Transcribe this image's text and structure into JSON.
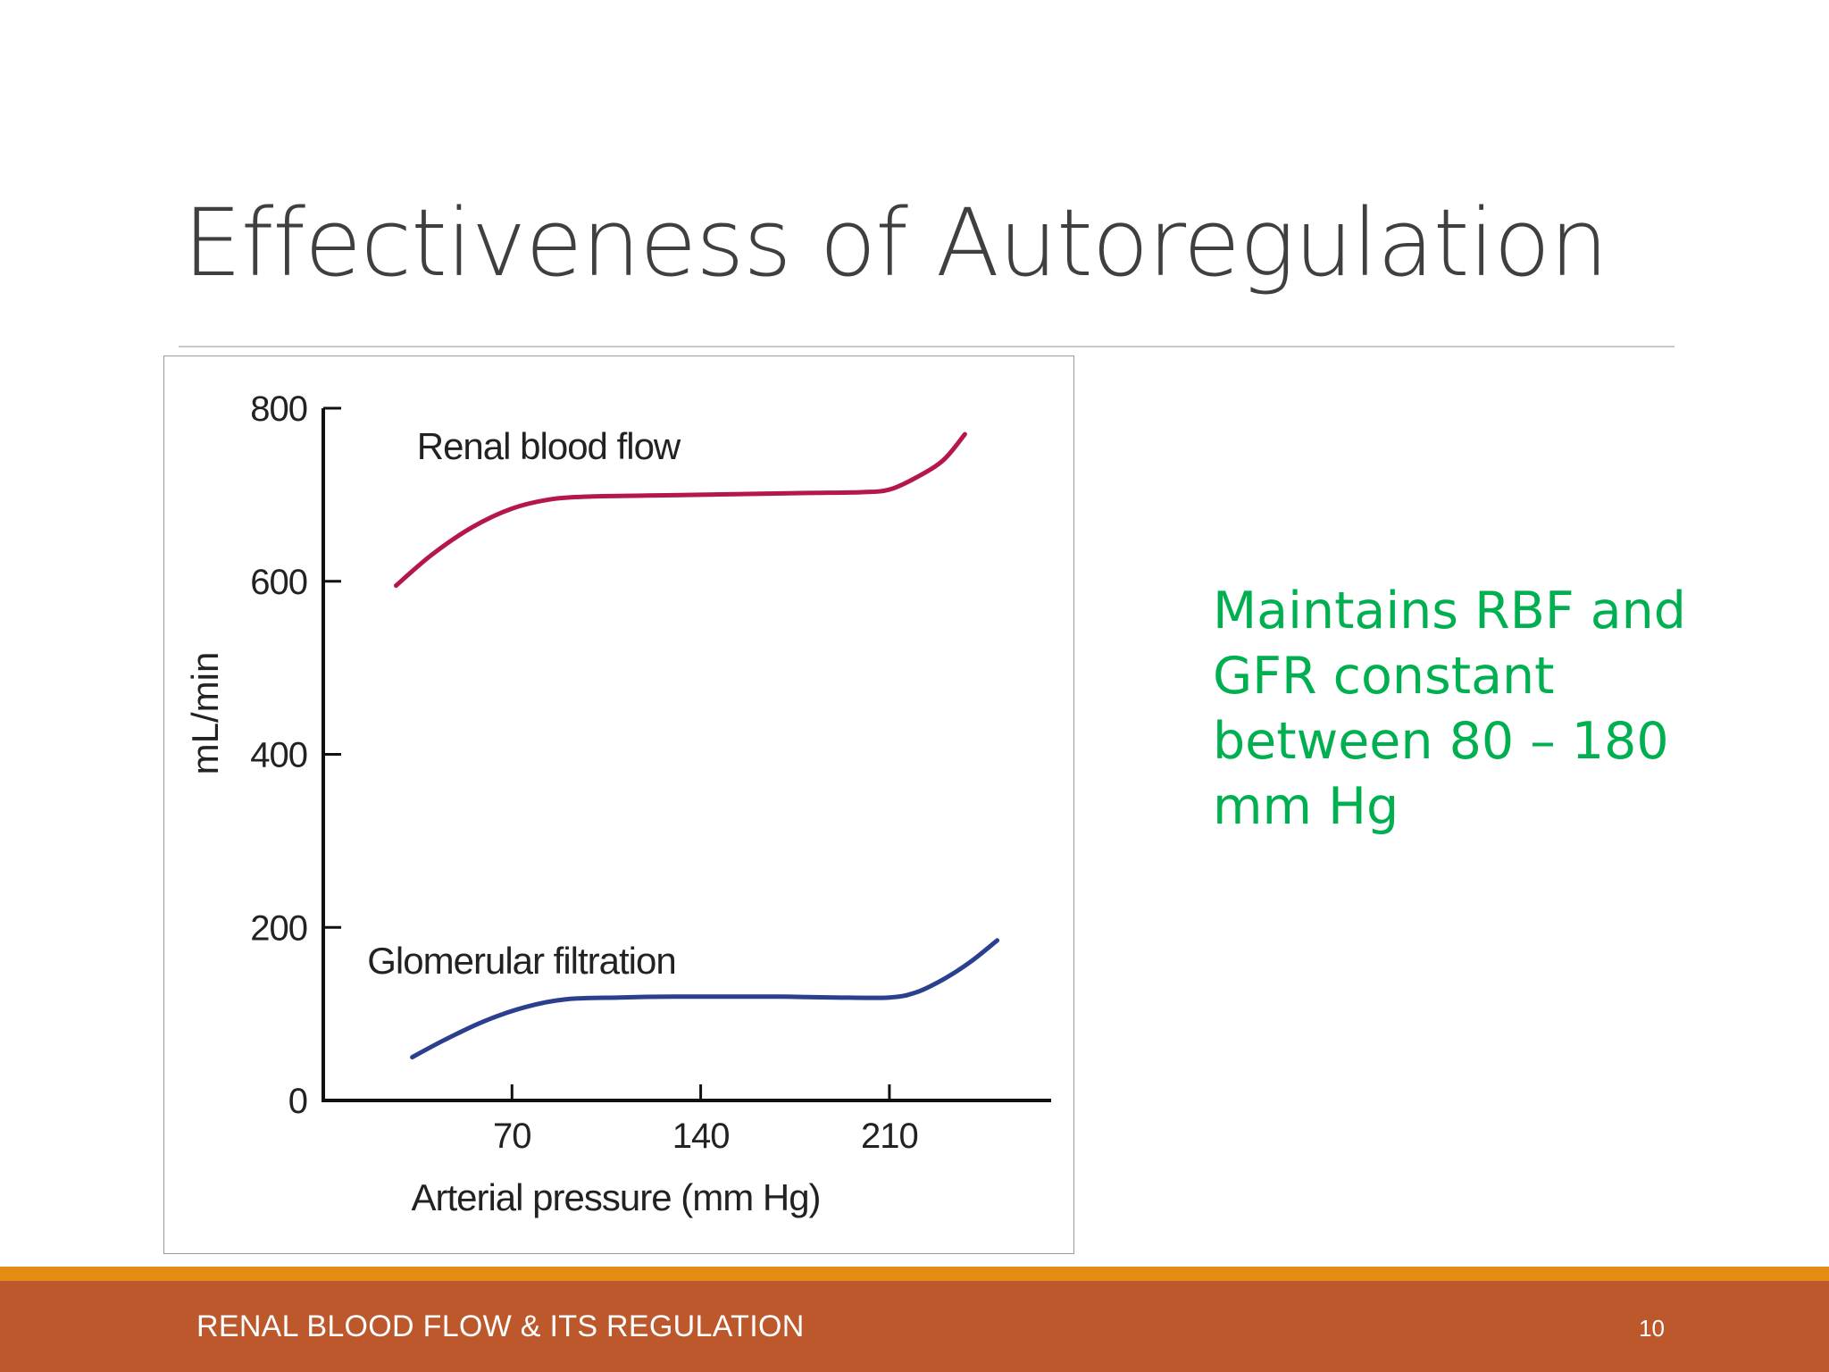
{
  "slide": {
    "title": "Effectiveness of Autoregulation",
    "note_lines": [
      "Maintains RBF and",
      "GFR constant",
      "between 80 – 180",
      "mm Hg"
    ],
    "footer_title": "RENAL BLOOD FLOW & ITS REGULATION",
    "page_number": "10",
    "note_color": "#00b050",
    "footer_color": "#bd582c",
    "accent_color": "#e38d14"
  },
  "chart_data": {
    "type": "line",
    "xlabel": "Arterial pressure (mm Hg)",
    "ylabel": "mL/min",
    "xlim": [
      0,
      270
    ],
    "ylim": [
      0,
      800
    ],
    "x_ticks": [
      70,
      140,
      210
    ],
    "y_ticks": [
      0,
      200,
      400,
      600,
      800
    ],
    "grid": false,
    "series": [
      {
        "name": "Renal blood flow",
        "color": "#b5174b",
        "x": [
          27,
          40,
          55,
          70,
          85,
          100,
          120,
          140,
          160,
          180,
          200,
          210,
          220,
          230,
          238
        ],
        "values": [
          595,
          630,
          662,
          684,
          695,
          698,
          699,
          700,
          701,
          702,
          703,
          706,
          720,
          740,
          770
        ]
      },
      {
        "name": "Glomerular filtration",
        "color": "#2b3f8f",
        "x": [
          33,
          45,
          60,
          75,
          90,
          110,
          130,
          150,
          170,
          190,
          210,
          220,
          230,
          240,
          250
        ],
        "values": [
          50,
          70,
          92,
          108,
          117,
          119,
          120,
          120,
          120,
          119,
          119,
          125,
          140,
          160,
          185
        ]
      }
    ]
  }
}
